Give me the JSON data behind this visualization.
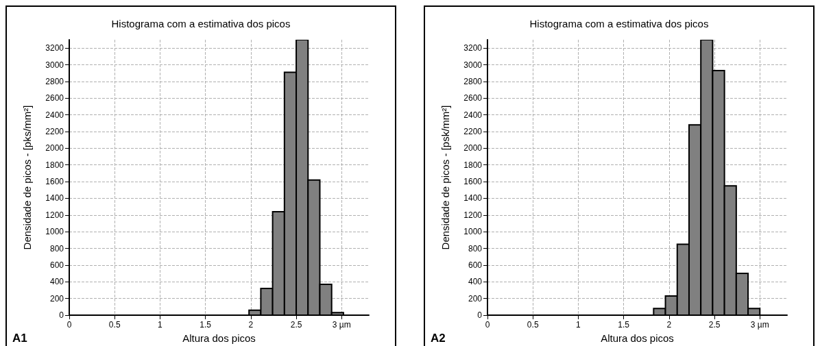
{
  "chart_data": [
    {
      "type": "histogram",
      "title": "Histograma com a estimativa dos picos",
      "xlabel": "Altura dos picos",
      "ylabel": "Densidade de picos - [pks/mm²]",
      "annotations": [
        "A1"
      ],
      "bins": [
        1.98,
        2.11,
        2.24,
        2.37,
        2.5,
        2.63,
        2.76,
        2.89,
        3.02
      ],
      "values": [
        60,
        320,
        1240,
        2910,
        3300,
        1620,
        370,
        30
      ],
      "color": "#808080",
      "xlim": [
        0,
        3.3
      ],
      "ylim": [
        0,
        3300
      ],
      "xticks": [
        0,
        0.5,
        1,
        1.5,
        2,
        2.5,
        {
          "value": 3,
          "label": "3 µm"
        }
      ],
      "yticks": [
        0,
        200,
        400,
        600,
        800,
        1000,
        1200,
        1400,
        1600,
        1800,
        2000,
        2200,
        2400,
        2600,
        2800,
        3000,
        3200
      ],
      "grid": true
    },
    {
      "type": "histogram",
      "title": "Histograma com a estimativa dos picos",
      "xlabel": "Altura dos picos",
      "ylabel": "Densidade de picos - [psk/mm²]",
      "annotations": [
        "A2"
      ],
      "bins": [
        1.83,
        1.96,
        2.09,
        2.22,
        2.35,
        2.48,
        2.61,
        2.74,
        2.87,
        3.0
      ],
      "values": [
        80,
        230,
        850,
        2280,
        3300,
        2930,
        1550,
        500,
        80
      ],
      "color": "#808080",
      "xlim": [
        0,
        3.3
      ],
      "ylim": [
        0,
        3300
      ],
      "xticks": [
        0,
        0.5,
        1,
        1.5,
        2,
        2.5,
        {
          "value": 3,
          "label": "3 µm"
        }
      ],
      "yticks": [
        0,
        200,
        400,
        600,
        800,
        1000,
        1200,
        1400,
        1600,
        1800,
        2000,
        2200,
        2400,
        2600,
        2800,
        3000,
        3200
      ],
      "grid": true
    }
  ]
}
